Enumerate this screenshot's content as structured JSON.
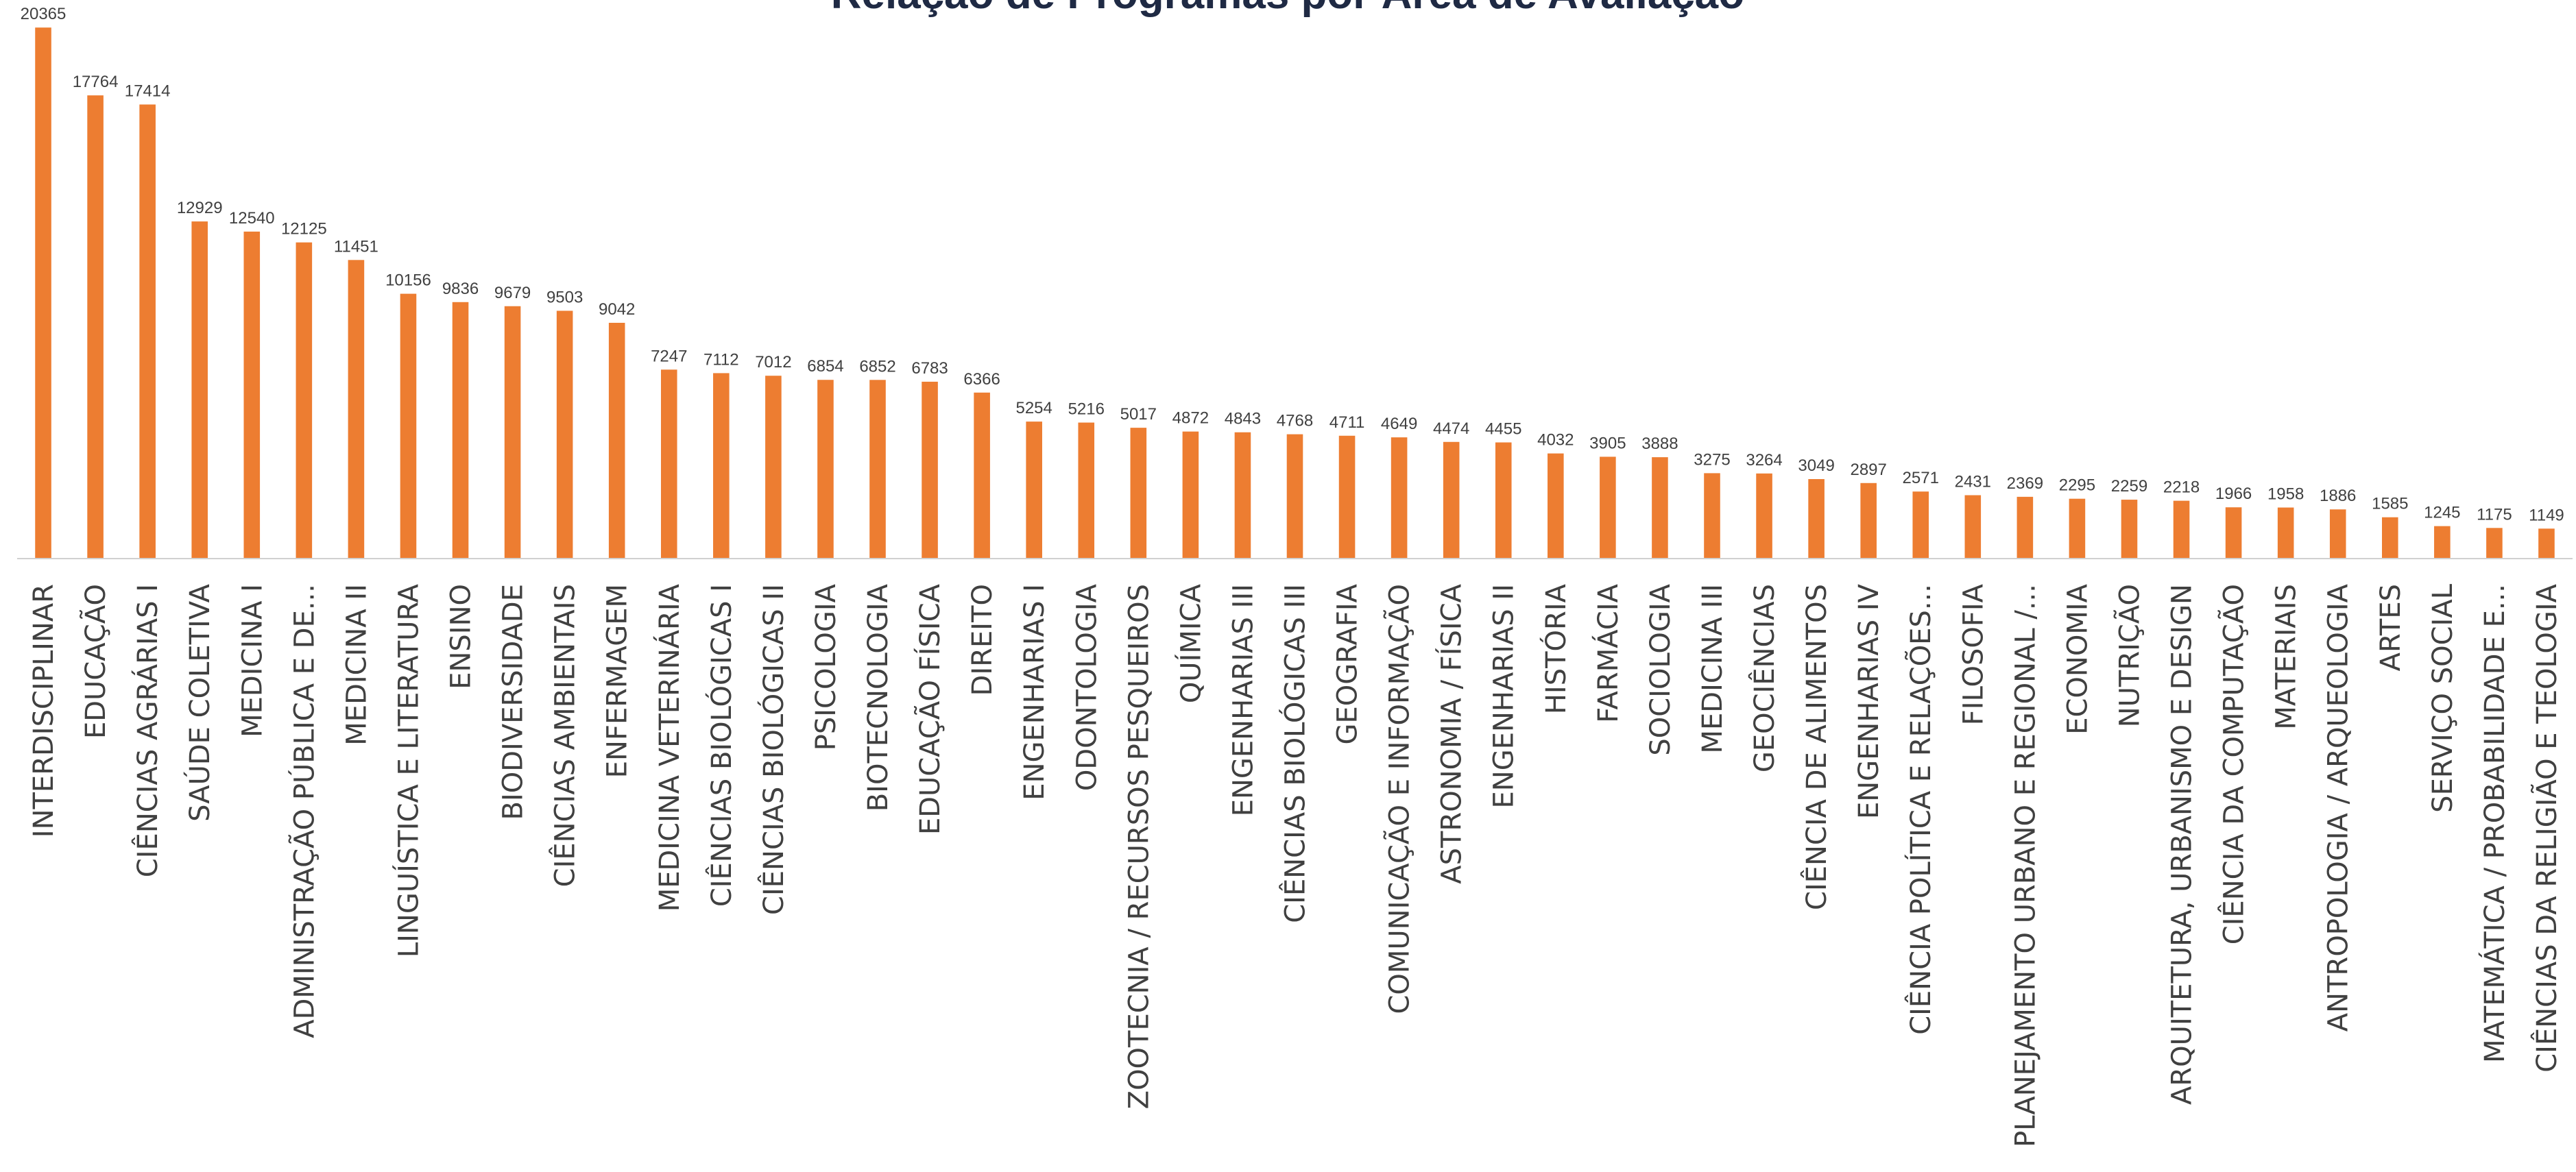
{
  "chart_data": {
    "type": "bar",
    "title": "Relação de Programas por Área de Avaliação",
    "bar_color": "#ed7d31",
    "categories": [
      "INTERDISCIPLINAR",
      "EDUCAÇÃO",
      "CIÊNCIAS AGRÁRIAS I",
      "SAÚDE COLETIVA",
      "MEDICINA I",
      "ADMINISTRAÇÃO PÚBLICA E DE...",
      "MEDICINA II",
      "LINGUÍSTICA E LITERATURA",
      "ENSINO",
      "BIODIVERSIDADE",
      "CIÊNCIAS AMBIENTAIS",
      "ENFERMAGEM",
      "MEDICINA VETERINÁRIA",
      "CIÊNCIAS BIOLÓGICAS I",
      "CIÊNCIAS BIOLÓGICAS II",
      "PSICOLOGIA",
      "BIOTECNOLOGIA",
      "EDUCAÇÃO FÍSICA",
      "DIREITO",
      "ENGENHARIAS I",
      "ODONTOLOGIA",
      "ZOOTECNIA / RECURSOS PESQUEIROS",
      "QUÍMICA",
      "ENGENHARIAS III",
      "CIÊNCIAS BIOLÓGICAS III",
      "GEOGRAFIA",
      "COMUNICAÇÃO E INFORMAÇÃO",
      "ASTRONOMIA / FÍSICA",
      "ENGENHARIAS II",
      "HISTÓRIA",
      "FARMÁCIA",
      "SOCIOLOGIA",
      "MEDICINA III",
      "GEOCIÊNCIAS",
      "CIÊNCIA DE ALIMENTOS",
      "ENGENHARIAS IV",
      "CIÊNCIA POLÍTICA E RELAÇÕES...",
      "FILOSOFIA",
      "PLANEJAMENTO URBANO E REGIONAL /...",
      "ECONOMIA",
      "NUTRIÇÃO",
      "ARQUITETURA, URBANISMO E DESIGN",
      "CIÊNCIA DA COMPUTAÇÃO",
      "MATERIAIS",
      "ANTROPOLOGIA / ARQUEOLOGIA",
      "ARTES",
      "SERVIÇO SOCIAL",
      "MATEMÁTICA / PROBABILIDADE E...",
      "CIÊNCIAS DA RELIGIÃO E TEOLOGIA"
    ],
    "values": [
      20365,
      17764,
      17414,
      12929,
      12540,
      12125,
      11451,
      10156,
      9836,
      9679,
      9503,
      9042,
      7247,
      7112,
      7012,
      6854,
      6852,
      6783,
      6366,
      5254,
      5216,
      5017,
      4872,
      4843,
      4768,
      4711,
      4649,
      4474,
      4455,
      4032,
      3905,
      3888,
      3275,
      3264,
      3049,
      2897,
      2571,
      2431,
      2369,
      2295,
      2259,
      2218,
      1966,
      1958,
      1886,
      1585,
      1245,
      1175,
      1149
    ],
    "ylim": [
      0,
      21000
    ],
    "grid": false,
    "legend": "none",
    "data_labels": true
  }
}
